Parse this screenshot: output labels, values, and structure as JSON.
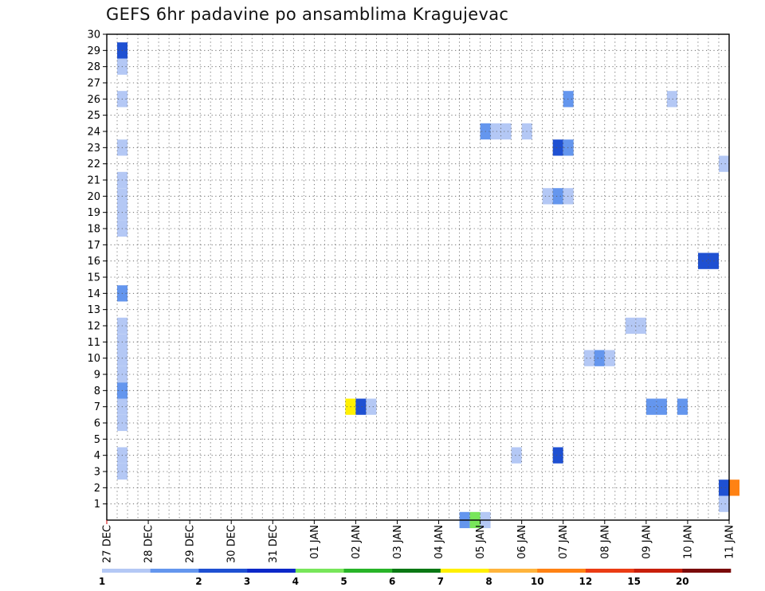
{
  "title": "GEFS 6hr padavine po ansamblima Kragujevac",
  "chart_data": {
    "type": "heatmap",
    "title": "GEFS 6hr padavine po ansamblima Kragujevac",
    "xlabel": "",
    "ylabel": "",
    "x_ticks": [
      "27 DEC",
      "28 DEC",
      "29 DEC",
      "30 DEC",
      "31 DEC",
      "01 JAN",
      "02 JAN",
      "03 JAN",
      "04 JAN",
      "05 JAN",
      "06 JAN",
      "07 JAN",
      "08 JAN",
      "09 JAN",
      "10 JAN",
      "11 JAN"
    ],
    "x_range": [
      "27 DEC 00Z",
      "11 JAN 00Z"
    ],
    "y_ticks": [
      1,
      2,
      3,
      4,
      5,
      6,
      7,
      8,
      9,
      10,
      11,
      12,
      13,
      14,
      15,
      16,
      17,
      18,
      19,
      20,
      21,
      22,
      23,
      24,
      25,
      26,
      27,
      28,
      29,
      30
    ],
    "y_range": [
      0,
      30
    ],
    "grid": true,
    "colorbar": {
      "labels": [
        "1",
        "2",
        "3",
        "4",
        "5",
        "6",
        "7",
        "8",
        "10",
        "12",
        "15",
        "20"
      ],
      "colors": [
        "#b4c8f5",
        "#6496ee",
        "#1e50d2",
        "#0c28c8",
        "#78e65a",
        "#28b428",
        "#0a7814",
        "#fff000",
        "#ffb43c",
        "#ff8214",
        "#eb3c14",
        "#c81e0a",
        "#7a0a0a"
      ]
    },
    "cells": [
      {
        "member": 29,
        "time": "27 DEC 06Z",
        "level": 3
      },
      {
        "member": 28,
        "time": "27 DEC 06Z",
        "level": 1
      },
      {
        "member": 26,
        "time": "27 DEC 06Z",
        "level": 1
      },
      {
        "member": 23,
        "time": "27 DEC 06Z",
        "level": 1
      },
      {
        "member": 21,
        "time": "27 DEC 06Z",
        "level": 1
      },
      {
        "member": 20,
        "time": "27 DEC 06Z",
        "level": 1
      },
      {
        "member": 19,
        "time": "27 DEC 06Z",
        "level": 1
      },
      {
        "member": 18,
        "time": "27 DEC 06Z",
        "level": 1
      },
      {
        "member": 14,
        "time": "27 DEC 06Z",
        "level": 2
      },
      {
        "member": 12,
        "time": "27 DEC 06Z",
        "level": 1
      },
      {
        "member": 11,
        "time": "27 DEC 06Z",
        "level": 1
      },
      {
        "member": 10,
        "time": "27 DEC 06Z",
        "level": 1
      },
      {
        "member": 9,
        "time": "27 DEC 06Z",
        "level": 1
      },
      {
        "member": 8,
        "time": "27 DEC 06Z",
        "level": 2
      },
      {
        "member": 7,
        "time": "27 DEC 06Z",
        "level": 1
      },
      {
        "member": 6,
        "time": "27 DEC 06Z",
        "level": 1
      },
      {
        "member": 4,
        "time": "27 DEC 06Z",
        "level": 1
      },
      {
        "member": 3,
        "time": "27 DEC 06Z",
        "level": 1
      },
      {
        "member": 7,
        "time": "01 JAN 18Z",
        "level": 8
      },
      {
        "member": 7,
        "time": "02 JAN 00Z",
        "level": 3
      },
      {
        "member": 7,
        "time": "02 JAN 06Z",
        "level": 1
      },
      {
        "member": 0,
        "time": "04 JAN 12Z",
        "level": 2
      },
      {
        "member": 0,
        "time": "04 JAN 18Z",
        "level": 5
      },
      {
        "member": 0,
        "time": "05 JAN 00Z",
        "level": 1
      },
      {
        "member": 24,
        "time": "05 JAN 00Z",
        "level": 2
      },
      {
        "member": 24,
        "time": "05 JAN 06Z",
        "level": 1
      },
      {
        "member": 24,
        "time": "05 JAN 12Z",
        "level": 1
      },
      {
        "member": 24,
        "time": "06 JAN 00Z",
        "level": 1
      },
      {
        "member": 4,
        "time": "05 JAN 18Z",
        "level": 1
      },
      {
        "member": 20,
        "time": "06 JAN 12Z",
        "level": 1
      },
      {
        "member": 20,
        "time": "06 JAN 18Z",
        "level": 2
      },
      {
        "member": 20,
        "time": "07 JAN 00Z",
        "level": 1
      },
      {
        "member": 23,
        "time": "06 JAN 18Z",
        "level": 3
      },
      {
        "member": 23,
        "time": "07 JAN 00Z",
        "level": 2
      },
      {
        "member": 4,
        "time": "06 JAN 18Z",
        "level": 3
      },
      {
        "member": 26,
        "time": "07 JAN 00Z",
        "level": 2
      },
      {
        "member": 10,
        "time": "07 JAN 12Z",
        "level": 1
      },
      {
        "member": 10,
        "time": "07 JAN 18Z",
        "level": 2
      },
      {
        "member": 10,
        "time": "08 JAN 00Z",
        "level": 1
      },
      {
        "member": 12,
        "time": "08 JAN 12Z",
        "level": 1
      },
      {
        "member": 12,
        "time": "08 JAN 18Z",
        "level": 1
      },
      {
        "member": 7,
        "time": "09 JAN 00Z",
        "level": 2
      },
      {
        "member": 7,
        "time": "09 JAN 06Z",
        "level": 2
      },
      {
        "member": 7,
        "time": "09 JAN 18Z",
        "level": 2
      },
      {
        "member": 26,
        "time": "09 JAN 12Z",
        "level": 1
      },
      {
        "member": 16,
        "time": "10 JAN 06Z",
        "level": 3
      },
      {
        "member": 16,
        "time": "10 JAN 12Z",
        "level": 3
      },
      {
        "member": 22,
        "time": "10 JAN 18Z",
        "level": 1
      },
      {
        "member": 2,
        "time": "10 JAN 18Z",
        "level": 3
      },
      {
        "member": 1,
        "time": "10 JAN 18Z",
        "level": 1
      },
      {
        "member": 2,
        "time": "11 JAN 00Z",
        "level": 10
      }
    ]
  }
}
